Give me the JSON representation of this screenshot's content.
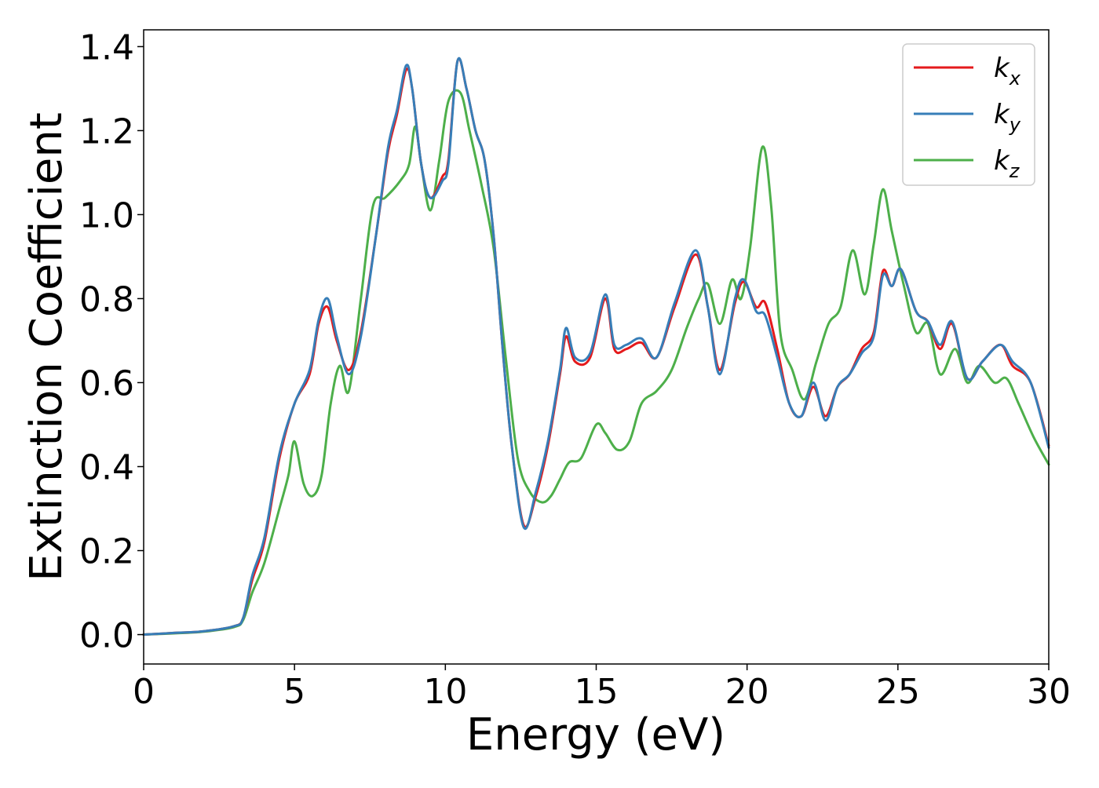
{
  "chart_data": {
    "type": "line",
    "title": "",
    "xlabel": "Energy (eV)",
    "ylabel": "Extinction Coefficient",
    "xlim": [
      0,
      30
    ],
    "ylim": [
      -0.07,
      1.44
    ],
    "x_ticks": [
      0,
      5,
      10,
      15,
      20,
      25,
      30
    ],
    "x_tick_labels": [
      "0",
      "5",
      "10",
      "15",
      "20",
      "25",
      "30"
    ],
    "y_ticks": [
      0.0,
      0.2,
      0.4,
      0.6,
      0.8,
      1.0,
      1.2,
      1.4
    ],
    "y_tick_labels": [
      "0.0",
      "0.2",
      "0.4",
      "0.6",
      "0.8",
      "1.0",
      "1.2",
      "1.4"
    ],
    "grid": false,
    "legend_position": "top-right",
    "series": [
      {
        "name": "k_x",
        "legend_base": "k",
        "legend_sub": "x",
        "color": "#e41a1c",
        "points": [
          [
            0,
            0
          ],
          [
            1,
            0.004
          ],
          [
            2,
            0.008
          ],
          [
            3,
            0.02
          ],
          [
            3.3,
            0.04
          ],
          [
            3.6,
            0.13
          ],
          [
            4,
            0.22
          ],
          [
            4.5,
            0.42
          ],
          [
            5,
            0.55
          ],
          [
            5.5,
            0.62
          ],
          [
            5.8,
            0.74
          ],
          [
            6.1,
            0.78
          ],
          [
            6.4,
            0.7
          ],
          [
            6.8,
            0.63
          ],
          [
            7.2,
            0.72
          ],
          [
            7.7,
            0.95
          ],
          [
            8.1,
            1.15
          ],
          [
            8.4,
            1.24
          ],
          [
            8.7,
            1.345
          ],
          [
            8.9,
            1.3
          ],
          [
            9.2,
            1.12
          ],
          [
            9.5,
            1.04
          ],
          [
            9.9,
            1.09
          ],
          [
            10.1,
            1.13
          ],
          [
            10.4,
            1.365
          ],
          [
            10.7,
            1.3
          ],
          [
            11,
            1.2
          ],
          [
            11.3,
            1.13
          ],
          [
            11.6,
            0.95
          ],
          [
            11.9,
            0.68
          ],
          [
            12.2,
            0.45
          ],
          [
            12.6,
            0.26
          ],
          [
            13,
            0.33
          ],
          [
            13.4,
            0.45
          ],
          [
            13.8,
            0.62
          ],
          [
            14,
            0.71
          ],
          [
            14.3,
            0.65
          ],
          [
            14.8,
            0.66
          ],
          [
            15.3,
            0.8
          ],
          [
            15.6,
            0.68
          ],
          [
            16,
            0.68
          ],
          [
            16.5,
            0.695
          ],
          [
            17,
            0.66
          ],
          [
            17.6,
            0.78
          ],
          [
            18.3,
            0.905
          ],
          [
            18.7,
            0.78
          ],
          [
            19.1,
            0.63
          ],
          [
            19.6,
            0.79
          ],
          [
            19.9,
            0.84
          ],
          [
            20.3,
            0.78
          ],
          [
            20.6,
            0.79
          ],
          [
            21,
            0.68
          ],
          [
            21.4,
            0.55
          ],
          [
            21.8,
            0.52
          ],
          [
            22.2,
            0.59
          ],
          [
            22.6,
            0.52
          ],
          [
            23,
            0.59
          ],
          [
            23.4,
            0.62
          ],
          [
            23.8,
            0.68
          ],
          [
            24.2,
            0.72
          ],
          [
            24.5,
            0.865
          ],
          [
            24.8,
            0.83
          ],
          [
            25.1,
            0.87
          ],
          [
            25.6,
            0.77
          ],
          [
            26,
            0.745
          ],
          [
            26.4,
            0.68
          ],
          [
            26.8,
            0.74
          ],
          [
            27.3,
            0.61
          ],
          [
            27.8,
            0.65
          ],
          [
            28.4,
            0.69
          ],
          [
            28.8,
            0.64
          ],
          [
            29.4,
            0.6
          ],
          [
            30,
            0.45
          ]
        ]
      },
      {
        "name": "k_y",
        "legend_base": "k",
        "legend_sub": "y",
        "color": "#377eb8",
        "points": [
          [
            0,
            0
          ],
          [
            1,
            0.004
          ],
          [
            2,
            0.008
          ],
          [
            3,
            0.02
          ],
          [
            3.3,
            0.04
          ],
          [
            3.6,
            0.14
          ],
          [
            4,
            0.23
          ],
          [
            4.5,
            0.43
          ],
          [
            5,
            0.55
          ],
          [
            5.5,
            0.63
          ],
          [
            5.8,
            0.75
          ],
          [
            6.1,
            0.8
          ],
          [
            6.4,
            0.71
          ],
          [
            6.8,
            0.62
          ],
          [
            7.2,
            0.71
          ],
          [
            7.7,
            0.95
          ],
          [
            8.1,
            1.16
          ],
          [
            8.4,
            1.25
          ],
          [
            8.7,
            1.355
          ],
          [
            8.9,
            1.3
          ],
          [
            9.2,
            1.12
          ],
          [
            9.5,
            1.04
          ],
          [
            9.9,
            1.08
          ],
          [
            10.1,
            1.12
          ],
          [
            10.4,
            1.365
          ],
          [
            10.7,
            1.3
          ],
          [
            11,
            1.2
          ],
          [
            11.3,
            1.13
          ],
          [
            11.6,
            0.95
          ],
          [
            11.9,
            0.68
          ],
          [
            12.2,
            0.45
          ],
          [
            12.6,
            0.255
          ],
          [
            13,
            0.34
          ],
          [
            13.4,
            0.46
          ],
          [
            13.8,
            0.63
          ],
          [
            14,
            0.73
          ],
          [
            14.3,
            0.66
          ],
          [
            14.8,
            0.67
          ],
          [
            15.3,
            0.81
          ],
          [
            15.6,
            0.69
          ],
          [
            16,
            0.69
          ],
          [
            16.5,
            0.705
          ],
          [
            17,
            0.66
          ],
          [
            17.6,
            0.79
          ],
          [
            18.3,
            0.915
          ],
          [
            18.7,
            0.78
          ],
          [
            19.1,
            0.62
          ],
          [
            19.6,
            0.8
          ],
          [
            19.9,
            0.845
          ],
          [
            20.3,
            0.77
          ],
          [
            20.6,
            0.76
          ],
          [
            21,
            0.66
          ],
          [
            21.4,
            0.55
          ],
          [
            21.8,
            0.52
          ],
          [
            22.2,
            0.6
          ],
          [
            22.6,
            0.51
          ],
          [
            23,
            0.59
          ],
          [
            23.4,
            0.62
          ],
          [
            23.8,
            0.67
          ],
          [
            24.2,
            0.71
          ],
          [
            24.5,
            0.855
          ],
          [
            24.8,
            0.83
          ],
          [
            25.1,
            0.87
          ],
          [
            25.6,
            0.77
          ],
          [
            26,
            0.745
          ],
          [
            26.4,
            0.69
          ],
          [
            26.8,
            0.745
          ],
          [
            27.3,
            0.61
          ],
          [
            27.8,
            0.65
          ],
          [
            28.4,
            0.69
          ],
          [
            28.8,
            0.65
          ],
          [
            29.4,
            0.6
          ],
          [
            30,
            0.445
          ]
        ]
      },
      {
        "name": "k_z",
        "legend_base": "k",
        "legend_sub": "z",
        "color": "#4daf4a",
        "points": [
          [
            0,
            0
          ],
          [
            1,
            0.003
          ],
          [
            2,
            0.007
          ],
          [
            3,
            0.018
          ],
          [
            3.3,
            0.035
          ],
          [
            3.6,
            0.1
          ],
          [
            4,
            0.17
          ],
          [
            4.5,
            0.3
          ],
          [
            4.8,
            0.38
          ],
          [
            5,
            0.46
          ],
          [
            5.3,
            0.36
          ],
          [
            5.6,
            0.33
          ],
          [
            5.9,
            0.38
          ],
          [
            6.2,
            0.55
          ],
          [
            6.5,
            0.64
          ],
          [
            6.8,
            0.58
          ],
          [
            7.2,
            0.8
          ],
          [
            7.6,
            1.02
          ],
          [
            8,
            1.04
          ],
          [
            8.5,
            1.08
          ],
          [
            8.8,
            1.12
          ],
          [
            9,
            1.21
          ],
          [
            9.2,
            1.12
          ],
          [
            9.5,
            1.01
          ],
          [
            9.8,
            1.13
          ],
          [
            10.1,
            1.27
          ],
          [
            10.5,
            1.29
          ],
          [
            10.8,
            1.2
          ],
          [
            11.2,
            1.07
          ],
          [
            11.6,
            0.92
          ],
          [
            12,
            0.66
          ],
          [
            12.4,
            0.42
          ],
          [
            12.8,
            0.34
          ],
          [
            13.2,
            0.315
          ],
          [
            13.5,
            0.33
          ],
          [
            13.8,
            0.37
          ],
          [
            14.1,
            0.41
          ],
          [
            14.5,
            0.42
          ],
          [
            15,
            0.5
          ],
          [
            15.3,
            0.48
          ],
          [
            15.7,
            0.44
          ],
          [
            16.1,
            0.46
          ],
          [
            16.5,
            0.55
          ],
          [
            17,
            0.58
          ],
          [
            17.5,
            0.63
          ],
          [
            18,
            0.73
          ],
          [
            18.4,
            0.8
          ],
          [
            18.7,
            0.835
          ],
          [
            19.1,
            0.74
          ],
          [
            19.5,
            0.845
          ],
          [
            19.8,
            0.8
          ],
          [
            20.1,
            0.92
          ],
          [
            20.5,
            1.16
          ],
          [
            20.8,
            1.02
          ],
          [
            21.1,
            0.72
          ],
          [
            21.5,
            0.63
          ],
          [
            21.9,
            0.56
          ],
          [
            22.3,
            0.65
          ],
          [
            22.7,
            0.74
          ],
          [
            23.1,
            0.78
          ],
          [
            23.5,
            0.915
          ],
          [
            23.9,
            0.81
          ],
          [
            24.2,
            0.93
          ],
          [
            24.5,
            1.06
          ],
          [
            24.8,
            0.96
          ],
          [
            25.2,
            0.83
          ],
          [
            25.6,
            0.72
          ],
          [
            26,
            0.74
          ],
          [
            26.4,
            0.62
          ],
          [
            26.9,
            0.68
          ],
          [
            27.3,
            0.6
          ],
          [
            27.7,
            0.64
          ],
          [
            28.2,
            0.6
          ],
          [
            28.6,
            0.61
          ],
          [
            29,
            0.55
          ],
          [
            29.5,
            0.47
          ],
          [
            30,
            0.405
          ]
        ]
      }
    ]
  }
}
